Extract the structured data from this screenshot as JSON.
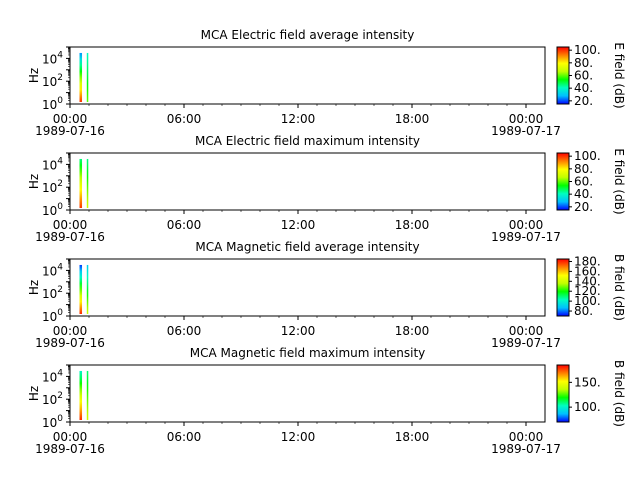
{
  "colors": {
    "background": "#ffffff",
    "axes": "#000000",
    "colormap": [
      "#0000ff",
      "#00c0ff",
      "#00ffc0",
      "#00ff00",
      "#c0ff00",
      "#ffff00",
      "#ff8000",
      "#ff0000"
    ]
  },
  "chart_data": [
    {
      "type": "heatmap",
      "title": "MCA  Electric field average intensity",
      "ylabel": "Hz",
      "yscale": "log",
      "ylim": [
        1,
        100000
      ],
      "yticks": [
        {
          "exp": "0",
          "value": 1
        },
        {
          "exp": "2",
          "value": 100
        },
        {
          "exp": "4",
          "value": 10000
        }
      ],
      "xlim": [
        "1989-07-16 00:00",
        "1989-07-17 01:00"
      ],
      "xticks": [
        "00:00",
        "06:00",
        "12:00",
        "18:00",
        "00:00"
      ],
      "xtick_hours": [
        0,
        6,
        12,
        18,
        24
      ],
      "date_labels": [
        "1989-07-16",
        "1989-07-17"
      ],
      "colorbar": {
        "label": "E field (dB)",
        "ticks": [
          "20.",
          "40.",
          "60.",
          "80.",
          "100."
        ],
        "tick_values": [
          20,
          40,
          60,
          80,
          100
        ],
        "range": [
          15,
          105
        ]
      },
      "data_spans": [
        {
          "t_start": "1989-07-16 00:30",
          "t_end": "1989-07-16 00:38",
          "f_low": 1.5,
          "f_high": 30000,
          "value_low_freq": 100,
          "value_high_freq": 25
        },
        {
          "t_start": "1989-07-16 00:53",
          "t_end": "1989-07-16 00:55",
          "f_low": 1.5,
          "f_high": 30000,
          "value_low_freq": 60,
          "value_high_freq": 40
        }
      ]
    },
    {
      "type": "heatmap",
      "title": "MCA  Electric field maximum intensity",
      "ylabel": "Hz",
      "yscale": "log",
      "ylim": [
        1,
        100000
      ],
      "yticks": [
        {
          "exp": "0",
          "value": 1
        },
        {
          "exp": "2",
          "value": 100
        },
        {
          "exp": "4",
          "value": 10000
        }
      ],
      "xlim": [
        "1989-07-16 00:00",
        "1989-07-17 01:00"
      ],
      "xticks": [
        "00:00",
        "06:00",
        "12:00",
        "18:00",
        "00:00"
      ],
      "xtick_hours": [
        0,
        6,
        12,
        18,
        24
      ],
      "date_labels": [
        "1989-07-16",
        "1989-07-17"
      ],
      "colorbar": {
        "label": "E field (dB)",
        "ticks": [
          "20.",
          "40.",
          "60.",
          "80.",
          "100."
        ],
        "tick_values": [
          20,
          40,
          60,
          80,
          100
        ],
        "range": [
          15,
          105
        ]
      },
      "data_spans": [
        {
          "t_start": "1989-07-16 00:30",
          "t_end": "1989-07-16 00:38",
          "f_low": 1.5,
          "f_high": 30000,
          "value_low_freq": 100,
          "value_high_freq": 45
        },
        {
          "t_start": "1989-07-16 00:53",
          "t_end": "1989-07-16 00:55",
          "f_low": 1.5,
          "f_high": 30000,
          "value_low_freq": 70,
          "value_high_freq": 45
        }
      ]
    },
    {
      "type": "heatmap",
      "title": "MCA  Magnetic field average intensity",
      "ylabel": "Hz",
      "yscale": "log",
      "ylim": [
        1,
        100000
      ],
      "yticks": [
        {
          "exp": "0",
          "value": 1
        },
        {
          "exp": "2",
          "value": 100
        },
        {
          "exp": "4",
          "value": 10000
        }
      ],
      "xlim": [
        "1989-07-16 00:00",
        "1989-07-17 01:00"
      ],
      "xticks": [
        "00:00",
        "06:00",
        "12:00",
        "18:00",
        "00:00"
      ],
      "xtick_hours": [
        0,
        6,
        12,
        18,
        24
      ],
      "date_labels": [
        "1989-07-16",
        "1989-07-17"
      ],
      "colorbar": {
        "label": "B field (dB)",
        "ticks": [
          "80.",
          "100.",
          "120.",
          "140.",
          "160.",
          "180."
        ],
        "tick_values": [
          80,
          100,
          120,
          140,
          160,
          180
        ],
        "range": [
          70,
          185
        ]
      },
      "data_spans": [
        {
          "t_start": "1989-07-16 00:30",
          "t_end": "1989-07-16 00:38",
          "f_low": 1.5,
          "f_high": 30000,
          "value_low_freq": 180,
          "value_high_freq": 75
        },
        {
          "t_start": "1989-07-16 00:53",
          "t_end": "1989-07-16 00:55",
          "f_low": 1.5,
          "f_high": 30000,
          "value_low_freq": 140,
          "value_high_freq": 90
        }
      ]
    },
    {
      "type": "heatmap",
      "title": "MCA  Magnetic field maximum intensity",
      "ylabel": "Hz",
      "yscale": "log",
      "ylim": [
        1,
        100000
      ],
      "yticks": [
        {
          "exp": "0",
          "value": 1
        },
        {
          "exp": "2",
          "value": 100
        },
        {
          "exp": "4",
          "value": 10000
        }
      ],
      "xlim": [
        "1989-07-16 00:00",
        "1989-07-17 01:00"
      ],
      "xticks": [
        "00:00",
        "06:00",
        "12:00",
        "18:00",
        "00:00"
      ],
      "xtick_hours": [
        0,
        6,
        12,
        18,
        24
      ],
      "date_labels": [
        "1989-07-16",
        "1989-07-17"
      ],
      "colorbar": {
        "label": "B field (dB)",
        "ticks": [
          "100.",
          "150."
        ],
        "tick_values": [
          100,
          150
        ],
        "range": [
          70,
          185
        ]
      },
      "data_spans": [
        {
          "t_start": "1989-07-16 00:30",
          "t_end": "1989-07-16 00:38",
          "f_low": 1.5,
          "f_high": 30000,
          "value_low_freq": 180,
          "value_high_freq": 100
        },
        {
          "t_start": "1989-07-16 00:53",
          "t_end": "1989-07-16 00:55",
          "f_low": 1.5,
          "f_high": 30000,
          "value_low_freq": 140,
          "value_high_freq": 110
        }
      ]
    }
  ]
}
